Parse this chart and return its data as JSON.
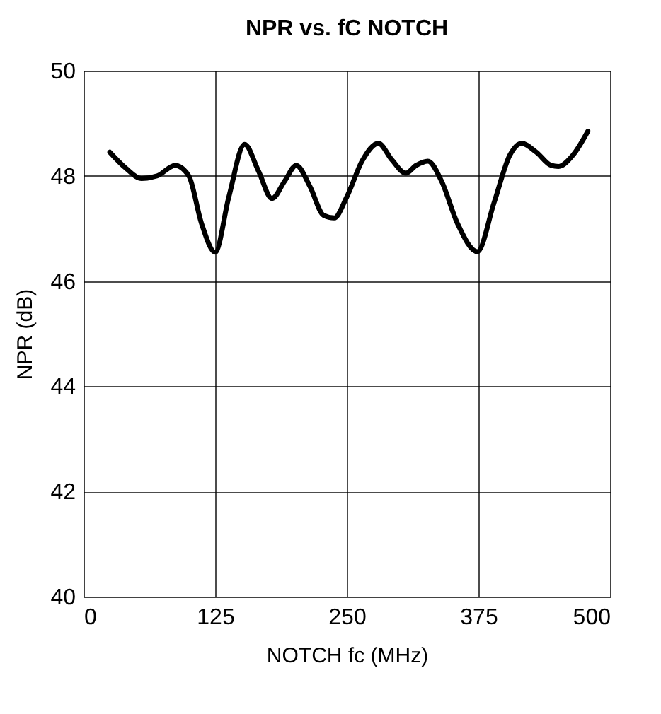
{
  "chart_data": {
    "type": "line",
    "title": "NPR vs. fC NOTCH",
    "xlabel": "NOTCH fc (MHz)",
    "ylabel": "NPR (dB)",
    "x": [
      25,
      40,
      55,
      70,
      87,
      100,
      112,
      125,
      138,
      153,
      166,
      179,
      191,
      202,
      215,
      228,
      238,
      250,
      265,
      280,
      293,
      306,
      316,
      327,
      340,
      355,
      374,
      390,
      405,
      416,
      430,
      444,
      451,
      465,
      479
    ],
    "series": [
      {
        "color": "#000000",
        "values": [
          48.45,
          48.15,
          47.95,
          48.0,
          48.2,
          48.0,
          47.1,
          46.55,
          47.6,
          48.6,
          48.1,
          47.57,
          47.9,
          48.2,
          47.8,
          47.25,
          47.2,
          47.6,
          48.3,
          48.62,
          48.3,
          48.05,
          48.2,
          48.28,
          47.9,
          47.1,
          46.56,
          47.5,
          48.4,
          48.62,
          48.45,
          48.2,
          48.18,
          48.4,
          48.85
        ]
      }
    ],
    "xlim": [
      0,
      500
    ],
    "xticks": [
      0,
      125,
      250,
      375,
      500
    ],
    "ylim": [
      40,
      50
    ],
    "yticks": [
      40,
      42,
      44,
      46,
      48,
      50
    ],
    "grid": true,
    "legend": false,
    "marker": "none",
    "line_style": "solid"
  }
}
